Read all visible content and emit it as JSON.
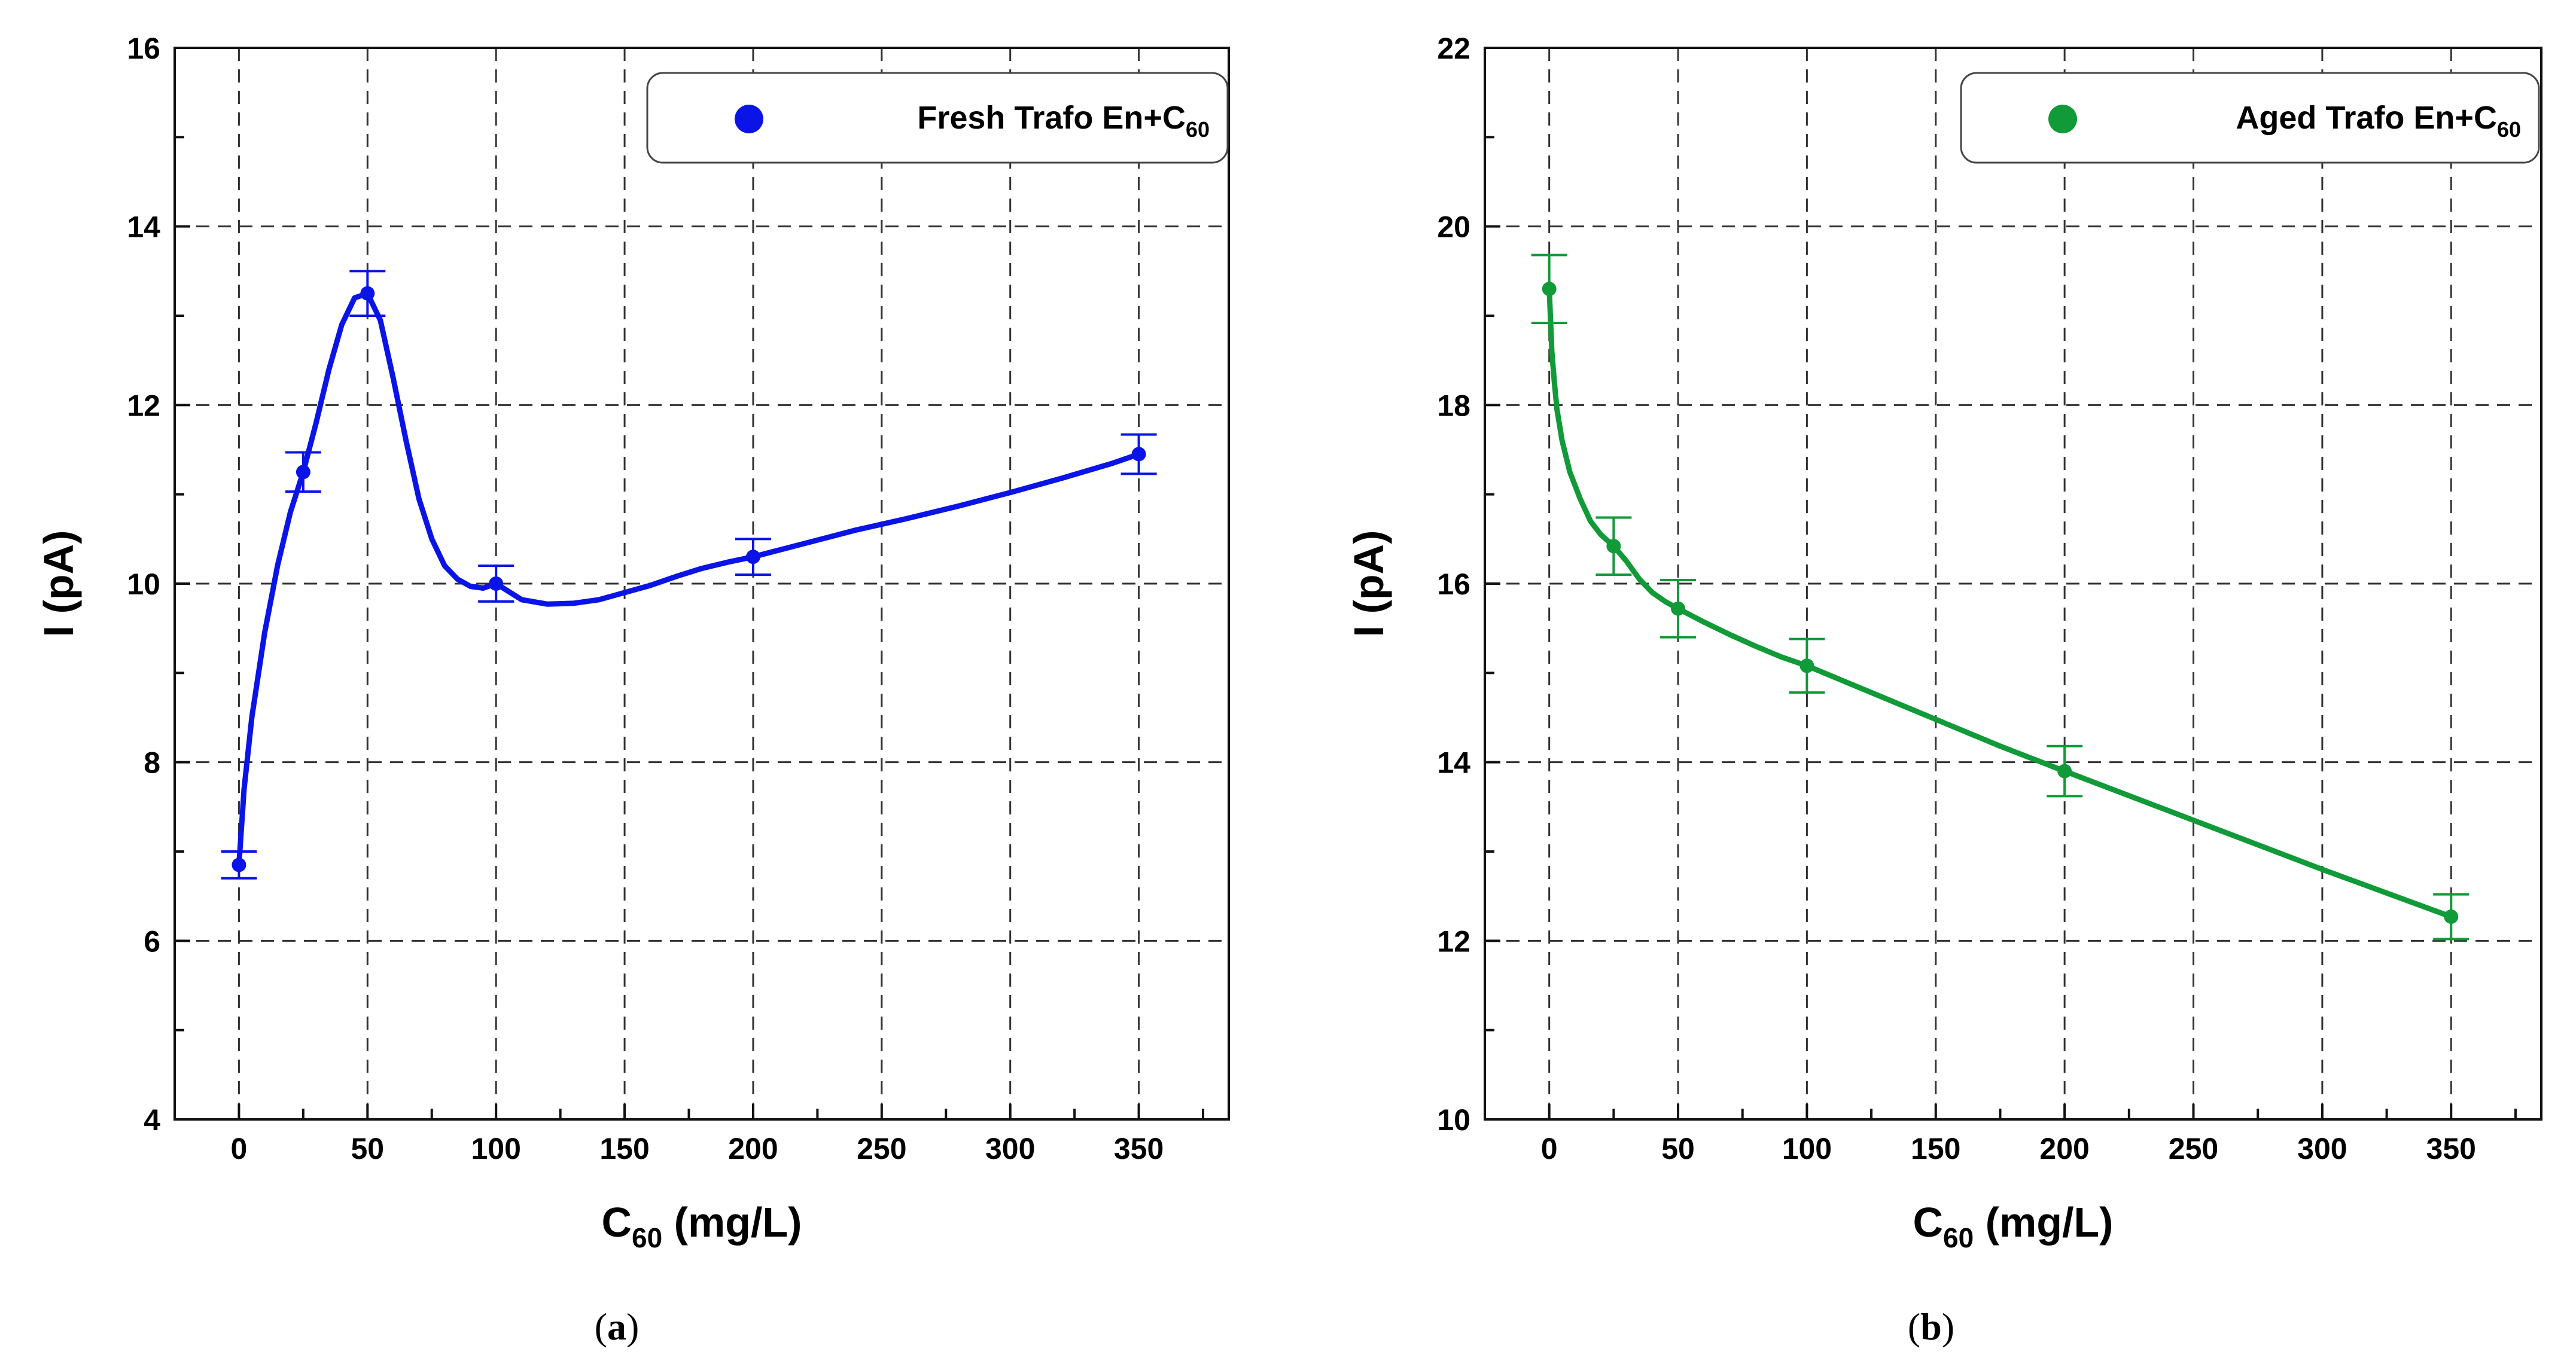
{
  "chart_data": [
    {
      "type": "line",
      "panel_label": "a",
      "title": "",
      "xlabel": {
        "main": "C",
        "sub": "60",
        "rest": " (mg/L)"
      },
      "ylabel": "I (pA)",
      "xlim": [
        -25,
        385
      ],
      "ylim": [
        4,
        16
      ],
      "xticks": [
        0,
        50,
        100,
        150,
        200,
        250,
        300,
        350
      ],
      "yticks": [
        4,
        6,
        8,
        10,
        12,
        14,
        16
      ],
      "grid": true,
      "legend_position": "top-right",
      "series": [
        {
          "name": "Fresh Trafo En+C60",
          "legend_label": {
            "main": "Fresh Trafo En+C",
            "sub": "60"
          },
          "color": "#0a14e6",
          "x": [
            0,
            25,
            50,
            100,
            200,
            350
          ],
          "y": [
            6.85,
            11.25,
            13.25,
            10.0,
            10.3,
            11.45
          ],
          "err": [
            0.15,
            0.22,
            0.25,
            0.2,
            0.2,
            0.22
          ],
          "curve_x": [
            0,
            2,
            5,
            10,
            15,
            20,
            25,
            30,
            35,
            40,
            45,
            50,
            55,
            60,
            65,
            70,
            75,
            80,
            85,
            90,
            95,
            100,
            110,
            120,
            130,
            140,
            150,
            160,
            170,
            180,
            190,
            200,
            220,
            240,
            260,
            280,
            300,
            320,
            340,
            350
          ],
          "curve_y": [
            6.85,
            7.7,
            8.5,
            9.45,
            10.2,
            10.8,
            11.25,
            11.8,
            12.4,
            12.9,
            13.2,
            13.25,
            12.95,
            12.3,
            11.6,
            10.95,
            10.5,
            10.2,
            10.05,
            9.97,
            9.95,
            10.0,
            9.82,
            9.77,
            9.78,
            9.82,
            9.9,
            9.98,
            10.08,
            10.17,
            10.24,
            10.3,
            10.45,
            10.6,
            10.73,
            10.87,
            11.02,
            11.18,
            11.35,
            11.45
          ]
        }
      ]
    },
    {
      "type": "line",
      "panel_label": "b",
      "title": "",
      "xlabel": {
        "main": "C",
        "sub": "60",
        "rest": " (mg/L)"
      },
      "ylabel": "I (pA)",
      "xlim": [
        -25,
        385
      ],
      "ylim": [
        10,
        22
      ],
      "xticks": [
        0,
        50,
        100,
        150,
        200,
        250,
        300,
        350
      ],
      "yticks": [
        10,
        12,
        14,
        16,
        18,
        20,
        22
      ],
      "grid": true,
      "legend_position": "top-right",
      "series": [
        {
          "name": "Aged Trafo En+C60",
          "legend_label": {
            "main": "Aged Trafo En+C",
            "sub": "60"
          },
          "color": "#109a38",
          "x": [
            0,
            25,
            50,
            100,
            200,
            350
          ],
          "y": [
            19.3,
            16.42,
            15.72,
            15.08,
            13.9,
            12.27
          ],
          "err": [
            0.38,
            0.32,
            0.32,
            0.3,
            0.28,
            0.25
          ],
          "curve_x": [
            0,
            1,
            2,
            3,
            5,
            8,
            12,
            16,
            20,
            25,
            30,
            35,
            40,
            45,
            50,
            60,
            70,
            80,
            90,
            100,
            125,
            150,
            175,
            200,
            250,
            300,
            350
          ],
          "curve_y": [
            19.3,
            18.6,
            18.25,
            17.95,
            17.6,
            17.25,
            16.95,
            16.7,
            16.55,
            16.42,
            16.25,
            16.05,
            15.9,
            15.8,
            15.72,
            15.57,
            15.43,
            15.3,
            15.18,
            15.08,
            14.78,
            14.48,
            14.18,
            13.9,
            13.35,
            12.8,
            12.27
          ]
        }
      ]
    }
  ]
}
